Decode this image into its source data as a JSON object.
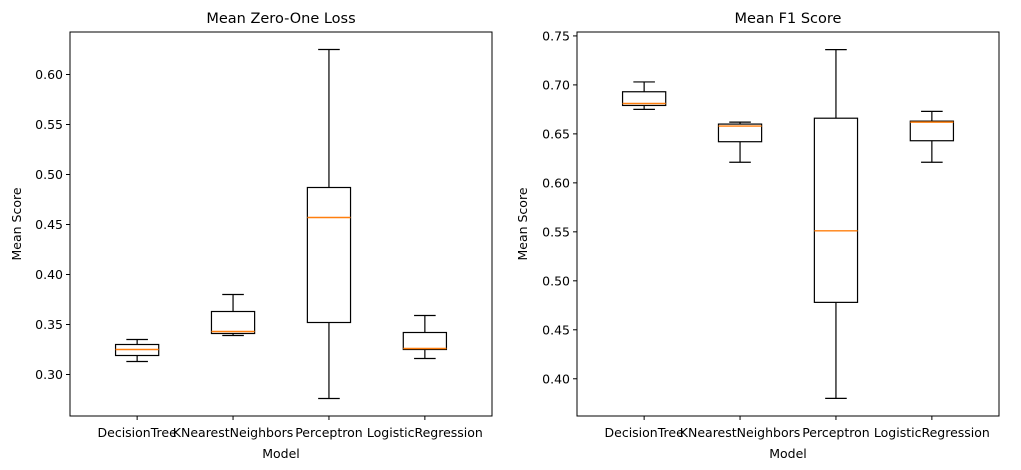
{
  "chart_data": [
    {
      "type": "box",
      "title": "Mean Zero-One Loss",
      "xlabel": "Model",
      "ylabel": "Mean Score",
      "categories": [
        "DecisionTree",
        "KNearestNeighbors",
        "Perceptron",
        "LogisticRegression"
      ],
      "boxes": [
        {
          "whislo": 0.313,
          "q1": 0.319,
          "med": 0.325,
          "q3": 0.33,
          "whishi": 0.335
        },
        {
          "whislo": 0.339,
          "q1": 0.341,
          "med": 0.343,
          "q3": 0.363,
          "whishi": 0.38
        },
        {
          "whislo": 0.276,
          "q1": 0.352,
          "med": 0.457,
          "q3": 0.487,
          "whishi": 0.625
        },
        {
          "whislo": 0.316,
          "q1": 0.325,
          "med": 0.326,
          "q3": 0.342,
          "whishi": 0.359
        }
      ],
      "yticks": [
        "0.30",
        "0.35",
        "0.40",
        "0.45",
        "0.50",
        "0.55",
        "0.60"
      ],
      "ylim": [
        0.2585,
        0.6425
      ],
      "grid": false
    },
    {
      "type": "box",
      "title": "Mean F1 Score",
      "xlabel": "Model",
      "ylabel": "Mean Score",
      "categories": [
        "DecisionTree",
        "KNearestNeighbors",
        "Perceptron",
        "LogisticRegression"
      ],
      "boxes": [
        {
          "whislo": 0.675,
          "q1": 0.679,
          "med": 0.681,
          "q3": 0.693,
          "whishi": 0.703
        },
        {
          "whislo": 0.621,
          "q1": 0.642,
          "med": 0.658,
          "q3": 0.66,
          "whishi": 0.662
        },
        {
          "whislo": 0.38,
          "q1": 0.478,
          "med": 0.551,
          "q3": 0.666,
          "whishi": 0.736
        },
        {
          "whislo": 0.621,
          "q1": 0.643,
          "med": 0.662,
          "q3": 0.663,
          "whishi": 0.673
        }
      ],
      "yticks": [
        "0.40",
        "0.45",
        "0.50",
        "0.55",
        "0.60",
        "0.65",
        "0.70",
        "0.75"
      ],
      "ylim": [
        0.362,
        0.754
      ],
      "grid": false
    }
  ]
}
